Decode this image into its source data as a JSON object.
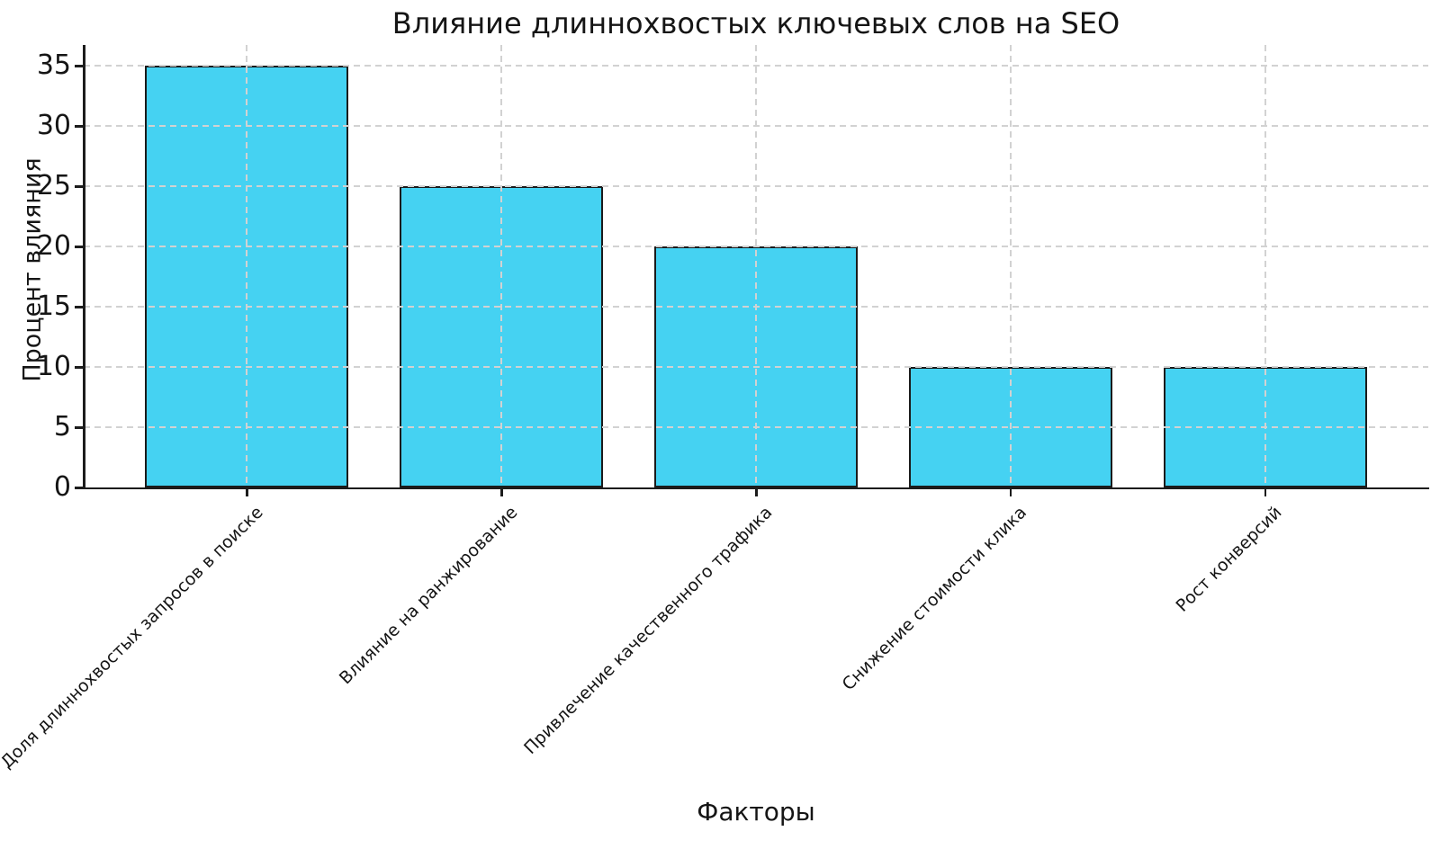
{
  "chart_data": {
    "type": "bar",
    "title": "Влияние длиннохвостых ключевых слов на SEO",
    "xlabel": "Факторы",
    "ylabel": "Процент влияния",
    "categories": [
      "Доля длиннохвостых запросов в поиске",
      "Влияние на ранжирование",
      "Привлечение качественного трафика",
      "Снижение стоимости клика",
      "Рост конверсий"
    ],
    "values": [
      35,
      25,
      20,
      10,
      10
    ],
    "yticks": [
      0,
      5,
      10,
      15,
      20,
      25,
      30,
      35
    ],
    "ylim": [
      0,
      36.75
    ],
    "xtick_rotation_deg": 45,
    "legend_position": "none",
    "grid": {
      "visible": true,
      "style": "dashed",
      "color": "#d2d2d2",
      "drawn_above_bars": true,
      "horizontal_at_yticks": true,
      "vertical_at_bar_centers": true
    },
    "bar_color": "#45d2f2",
    "bar_edge_color": "#1b1b1b",
    "axis_color": "#1c1c1c",
    "text_color": "#151515",
    "background_color": "#ffffff",
    "bar_center_fracs": [
      0.1212,
      0.3106,
      0.5,
      0.6894,
      0.8788
    ],
    "bar_width_frac": 0.1515
  }
}
